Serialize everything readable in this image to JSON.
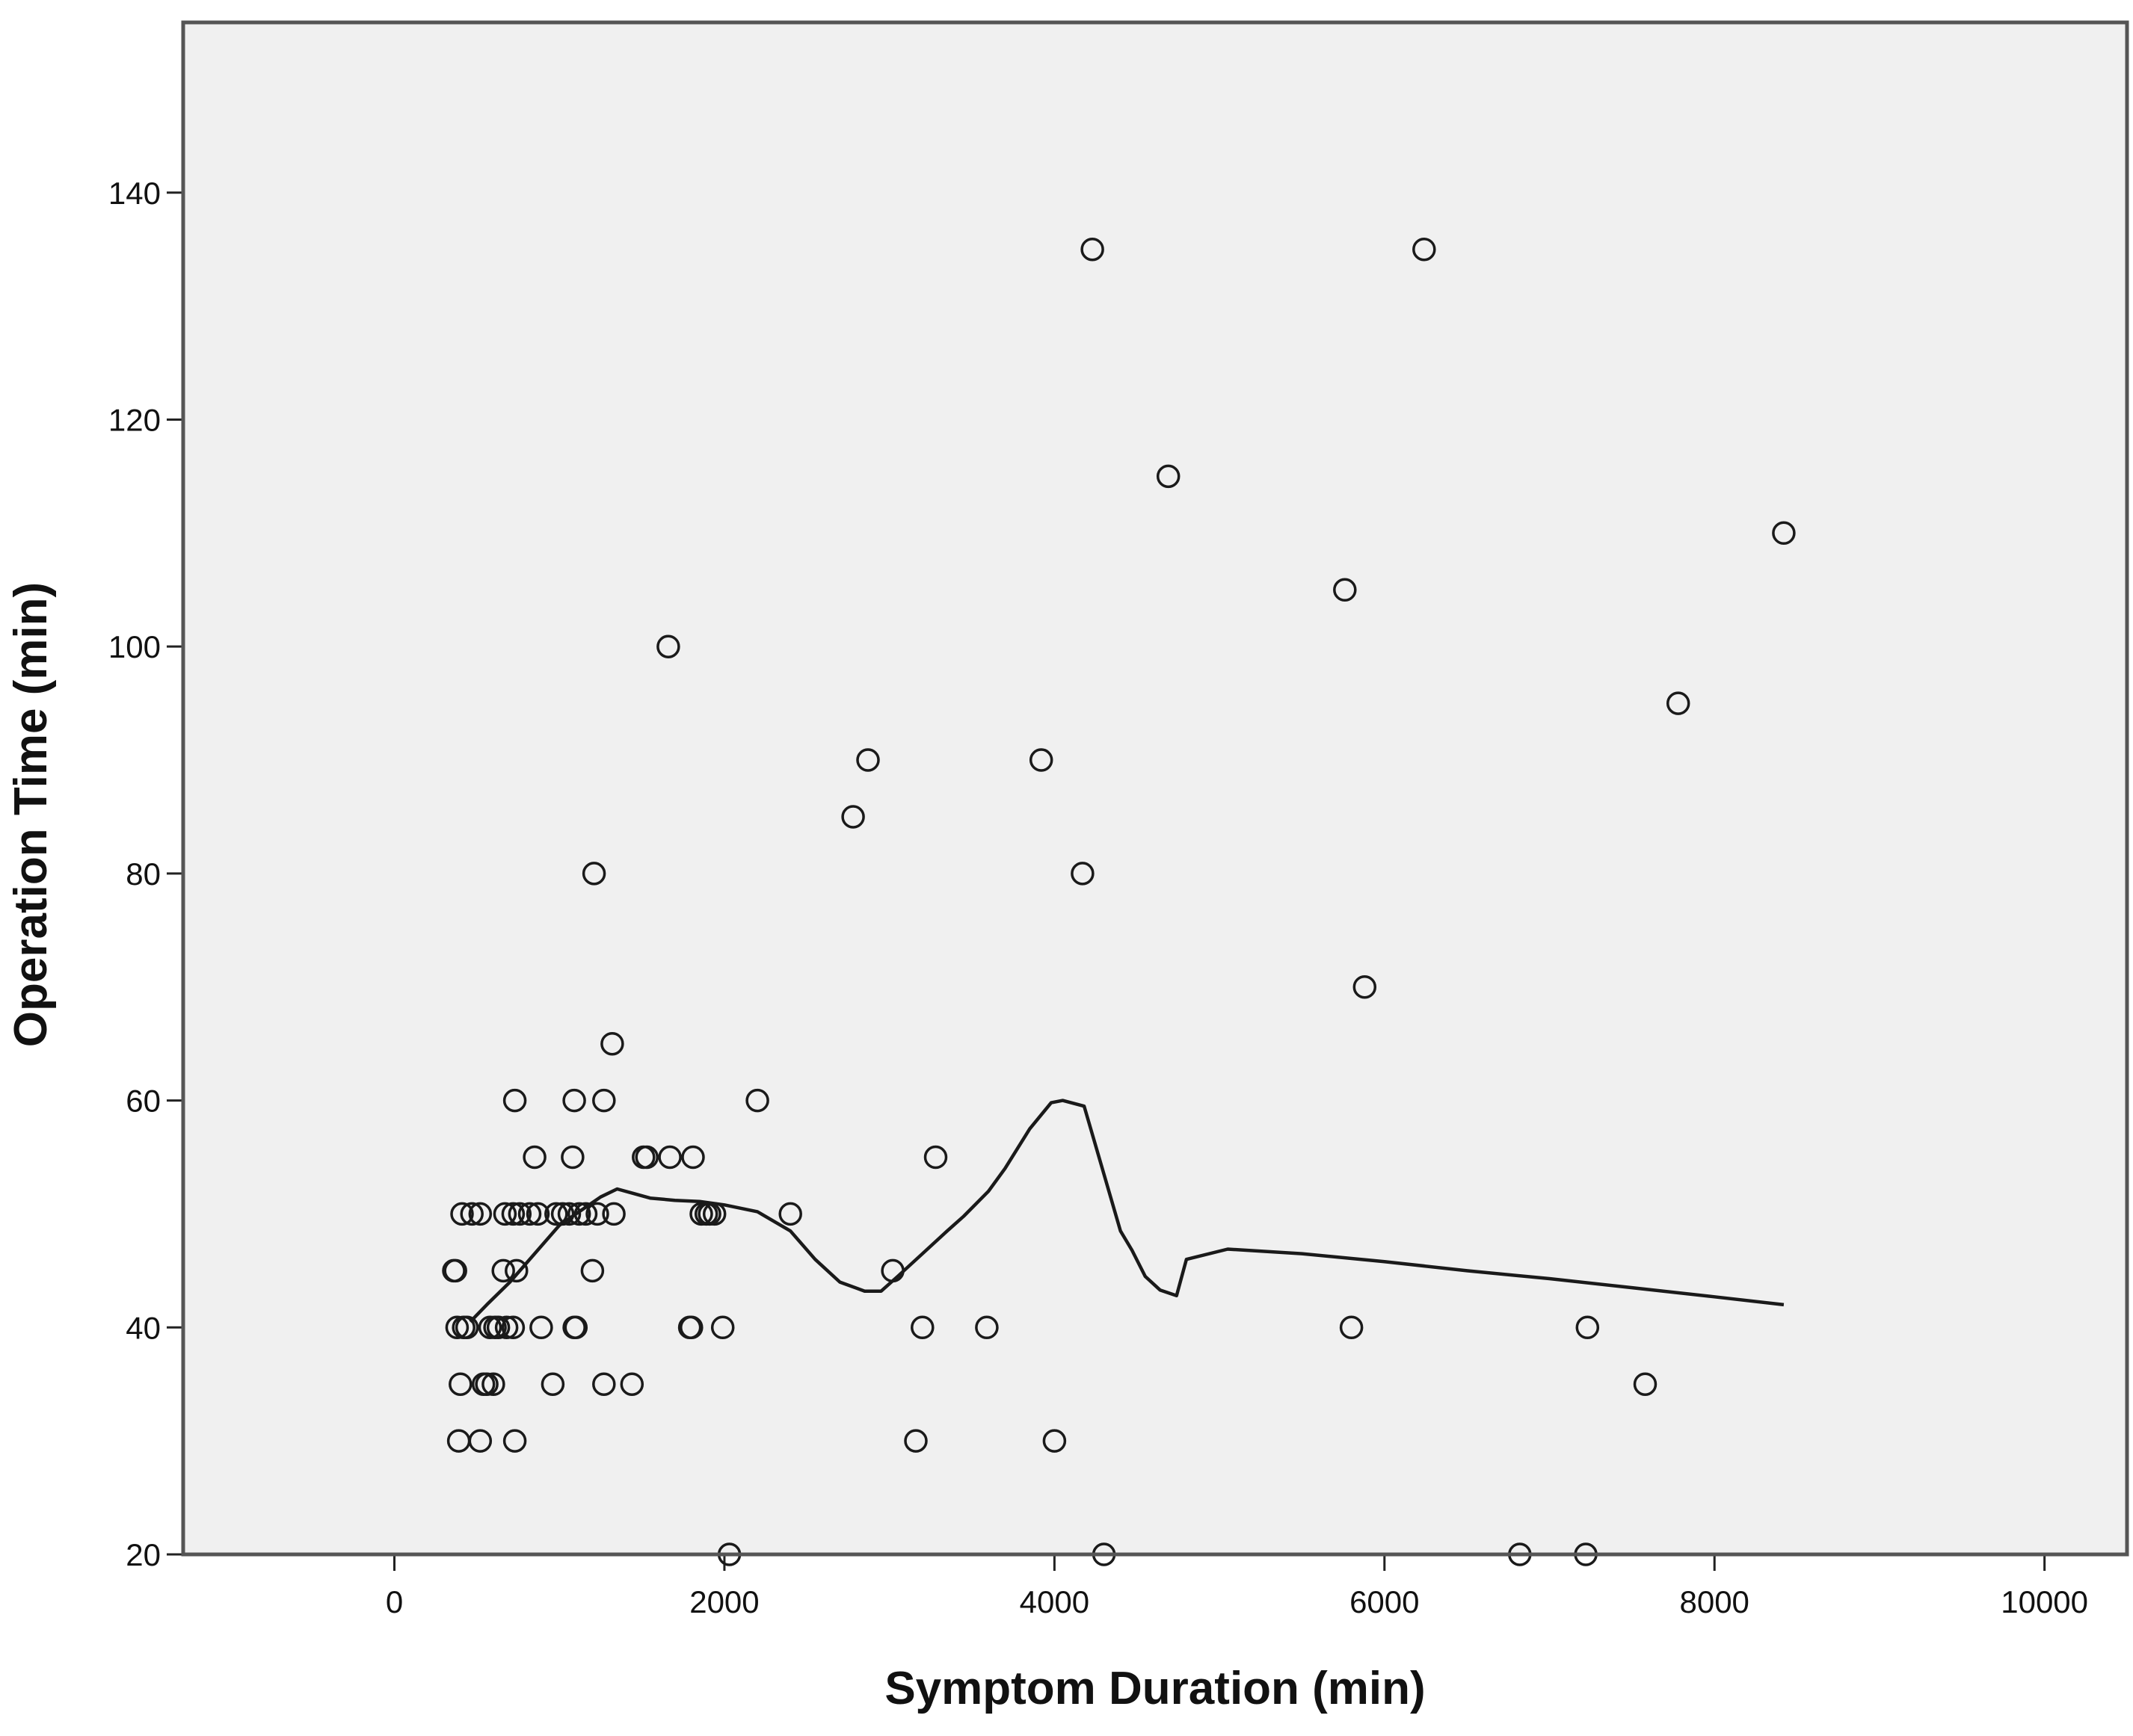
{
  "chart_data": {
    "type": "scatter",
    "xlabel": "Symptom Duration (min)",
    "ylabel": "Operation Time (min)",
    "xlim": [
      -1280,
      10500
    ],
    "ylim": [
      20,
      155
    ],
    "xticks": [
      0,
      2000,
      4000,
      6000,
      8000,
      10000
    ],
    "yticks": [
      20,
      40,
      60,
      80,
      100,
      120,
      140
    ],
    "xtick_labels": [
      "0",
      "2000",
      "4000",
      "6000",
      "8000",
      "10000"
    ],
    "ytick_labels": [
      "20",
      "40",
      "60",
      "80",
      "100",
      "120",
      "140"
    ],
    "grid": false,
    "plot_background": "#f0f0f0",
    "marker_color": "#1a1a1a",
    "points": [
      [
        360,
        45
      ],
      [
        370,
        45
      ],
      [
        390,
        30
      ],
      [
        400,
        35
      ],
      [
        380,
        40
      ],
      [
        420,
        40
      ],
      [
        440,
        40
      ],
      [
        410,
        50
      ],
      [
        470,
        50
      ],
      [
        520,
        30
      ],
      [
        520,
        50
      ],
      [
        540,
        35
      ],
      [
        560,
        35
      ],
      [
        580,
        40
      ],
      [
        600,
        35
      ],
      [
        610,
        40
      ],
      [
        630,
        40
      ],
      [
        660,
        45
      ],
      [
        680,
        40
      ],
      [
        670,
        50
      ],
      [
        720,
        40
      ],
      [
        720,
        50
      ],
      [
        730,
        60
      ],
      [
        730,
        30
      ],
      [
        740,
        45
      ],
      [
        760,
        50
      ],
      [
        820,
        50
      ],
      [
        850,
        55
      ],
      [
        870,
        50
      ],
      [
        890,
        40
      ],
      [
        960,
        35
      ],
      [
        980,
        50
      ],
      [
        1020,
        50
      ],
      [
        1060,
        50
      ],
      [
        1080,
        55
      ],
      [
        1090,
        60
      ],
      [
        1090,
        40
      ],
      [
        1100,
        40
      ],
      [
        1120,
        50
      ],
      [
        1160,
        50
      ],
      [
        1200,
        45
      ],
      [
        1210,
        80
      ],
      [
        1230,
        50
      ],
      [
        1270,
        60
      ],
      [
        1270,
        35
      ],
      [
        1320,
        65
      ],
      [
        1330,
        50
      ],
      [
        1440,
        35
      ],
      [
        1510,
        55
      ],
      [
        1530,
        55
      ],
      [
        1660,
        100
      ],
      [
        1670,
        55
      ],
      [
        1790,
        40
      ],
      [
        1800,
        40
      ],
      [
        1810,
        55
      ],
      [
        1860,
        50
      ],
      [
        1890,
        50
      ],
      [
        1910,
        50
      ],
      [
        1940,
        50
      ],
      [
        1990,
        40
      ],
      [
        2030,
        20
      ],
      [
        2200,
        60
      ],
      [
        2400,
        50
      ],
      [
        2780,
        85
      ],
      [
        2870,
        90
      ],
      [
        3020,
        45
      ],
      [
        3160,
        30
      ],
      [
        3200,
        40
      ],
      [
        3280,
        55
      ],
      [
        3590,
        40
      ],
      [
        3920,
        90
      ],
      [
        4000,
        30
      ],
      [
        4170,
        80
      ],
      [
        4230,
        135
      ],
      [
        4300,
        20
      ],
      [
        4690,
        115
      ],
      [
        5760,
        105
      ],
      [
        5800,
        40
      ],
      [
        5880,
        70
      ],
      [
        6240,
        135
      ],
      [
        6820,
        20
      ],
      [
        7220,
        20
      ],
      [
        7230,
        40
      ],
      [
        7580,
        35
      ],
      [
        7780,
        95
      ],
      [
        8420,
        110
      ]
    ],
    "loess_line": [
      [
        460,
        40.5
      ],
      [
        560,
        42
      ],
      [
        700,
        44
      ],
      [
        850,
        46.5
      ],
      [
        1000,
        49
      ],
      [
        1150,
        50.5
      ],
      [
        1250,
        51.5
      ],
      [
        1350,
        52.2
      ],
      [
        1450,
        51.8
      ],
      [
        1550,
        51.4
      ],
      [
        1700,
        51.2
      ],
      [
        1850,
        51.1
      ],
      [
        2000,
        50.8
      ],
      [
        2200,
        50.2
      ],
      [
        2400,
        48.5
      ],
      [
        2550,
        46
      ],
      [
        2700,
        44
      ],
      [
        2850,
        43.2
      ],
      [
        2950,
        43.2
      ],
      [
        3050,
        44.5
      ],
      [
        3200,
        46.5
      ],
      [
        3350,
        48.5
      ],
      [
        3450,
        49.8
      ],
      [
        3600,
        52
      ],
      [
        3700,
        54
      ],
      [
        3850,
        57.5
      ],
      [
        3980,
        59.8
      ],
      [
        4050,
        60
      ],
      [
        4180,
        59.5
      ],
      [
        4280,
        54.5
      ],
      [
        4400,
        48.5
      ],
      [
        4470,
        46.8
      ],
      [
        4550,
        44.5
      ],
      [
        4640,
        43.3
      ],
      [
        4740,
        42.8
      ],
      [
        4800,
        46
      ],
      [
        5050,
        46.9
      ],
      [
        5500,
        46.5
      ],
      [
        6000,
        45.8
      ],
      [
        6500,
        45
      ],
      [
        7000,
        44.3
      ],
      [
        7500,
        43.5
      ],
      [
        8000,
        42.7
      ],
      [
        8420,
        42
      ]
    ]
  }
}
